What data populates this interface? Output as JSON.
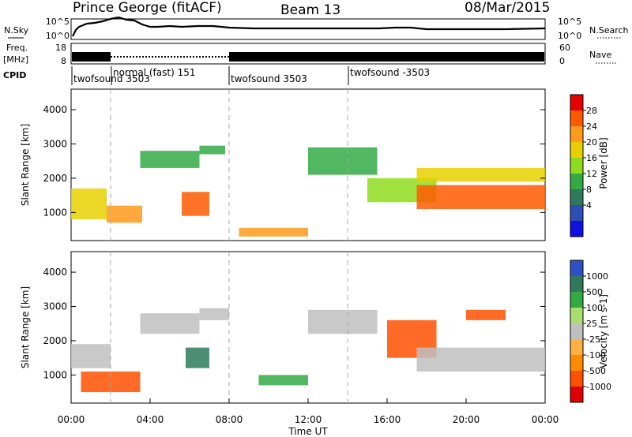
{
  "header": {
    "station": "Prince George (fitACF)",
    "beam": "Beam 13",
    "date": "08/Mar/2015"
  },
  "top_panels": {
    "nsky_label": "N.Sky",
    "nsearch_label": "N.Search",
    "freq_label": "Freq.",
    "freq_unit": "[MHz]",
    "nave_label": "Nave",
    "cpid_label": "CPID",
    "noise_left_ticks": [
      "10^5",
      "10^0"
    ],
    "noise_right_ticks": [
      "10^5",
      "10^0"
    ],
    "freq_left_ticks": [
      "18",
      "8"
    ],
    "nave_right_ticks": [
      "60",
      "0"
    ]
  },
  "cpid_segments": [
    {
      "label": "twofsound 3503",
      "start": "00:00"
    },
    {
      "label": "normal (fast) 151",
      "start": "02:00"
    },
    {
      "label": "twofsound 3503",
      "start": "08:00"
    },
    {
      "label": "twofsound -3503",
      "start": "14:00"
    }
  ],
  "power_colorbar": {
    "label": "Power [dB]",
    "ticks": [
      "28",
      "24",
      "20",
      "16",
      "12",
      "8",
      "4"
    ],
    "colors": [
      "#e60000",
      "#ff5a00",
      "#ff9a1a",
      "#e8d000",
      "#8fdc1f",
      "#33aa44",
      "#2f7a5c",
      "#2d4fb5",
      "#1010e0"
    ]
  },
  "velocity_colorbar": {
    "label": "Velocity [m s-1]",
    "ticks": [
      "1000",
      "500",
      "100",
      "25",
      "-25",
      "-100",
      "-500",
      "-1000"
    ],
    "colors": [
      "#3050c8",
      "#2f7a5c",
      "#33aa44",
      "#a8dd70",
      "#c0c0c0",
      "#ffb040",
      "#ff8a00",
      "#ff5000",
      "#e00000"
    ]
  },
  "chart_data": [
    {
      "type": "heatmap",
      "panel": "power",
      "ylabel": "Slant Range [km]",
      "ylim": [
        180,
        4600
      ],
      "y_ticks": [
        1000,
        2000,
        3000,
        4000
      ],
      "x_ticks": [
        "00:00",
        "04:00",
        "08:00",
        "12:00",
        "16:00",
        "20:00",
        "00:00"
      ],
      "xlim_hours": [
        0,
        24
      ],
      "colorbar": "Power [dB]",
      "bands": [
        {
          "t0": 0.0,
          "t1": 1.8,
          "r0": 800,
          "r1": 1700,
          "value_db": 16
        },
        {
          "t0": 1.8,
          "t1": 3.6,
          "r0": 700,
          "r1": 1200,
          "value_db": 20
        },
        {
          "t0": 3.5,
          "t1": 6.5,
          "r0": 2300,
          "r1": 2800,
          "value_db": 8
        },
        {
          "t0": 6.5,
          "t1": 7.8,
          "r0": 2700,
          "r1": 2950,
          "value_db": 8
        },
        {
          "t0": 5.6,
          "t1": 7.0,
          "r0": 900,
          "r1": 1600,
          "value_db": 24
        },
        {
          "t0": 8.5,
          "t1": 12.0,
          "r0": 300,
          "r1": 550,
          "value_db": 20
        },
        {
          "t0": 12.0,
          "t1": 15.5,
          "r0": 2100,
          "r1": 2900,
          "value_db": 8
        },
        {
          "t0": 15.0,
          "t1": 18.5,
          "r0": 1300,
          "r1": 2000,
          "value_db": 12
        },
        {
          "t0": 17.5,
          "t1": 24.0,
          "r0": 1100,
          "r1": 1800,
          "value_db": 24
        },
        {
          "t0": 17.5,
          "t1": 24.0,
          "r0": 1900,
          "r1": 2300,
          "value_db": 16
        }
      ]
    },
    {
      "type": "heatmap",
      "panel": "velocity",
      "xlabel": "Time UT",
      "ylabel": "Slant Range [km]",
      "ylim": [
        180,
        4600
      ],
      "y_ticks": [
        1000,
        2000,
        3000,
        4000
      ],
      "x_ticks": [
        "00:00",
        "04:00",
        "08:00",
        "12:00",
        "16:00",
        "20:00",
        "00:00"
      ],
      "xlim_hours": [
        0,
        24
      ],
      "colorbar": "Velocity [m s-1]",
      "bands": [
        {
          "t0": 0.0,
          "t1": 2.0,
          "r0": 1200,
          "r1": 1900,
          "value_ms": 0
        },
        {
          "t0": 0.5,
          "t1": 3.5,
          "r0": 500,
          "r1": 1100,
          "value_ms": -300
        },
        {
          "t0": 3.5,
          "t1": 6.5,
          "r0": 2200,
          "r1": 2800,
          "value_ms": 0
        },
        {
          "t0": 6.5,
          "t1": 8.0,
          "r0": 2600,
          "r1": 2950,
          "value_ms": 0
        },
        {
          "t0": 5.8,
          "t1": 7.0,
          "r0": 1200,
          "r1": 1800,
          "value_ms": 300
        },
        {
          "t0": 9.5,
          "t1": 12.0,
          "r0": 700,
          "r1": 1000,
          "value_ms": 120
        },
        {
          "t0": 12.0,
          "t1": 15.5,
          "r0": 2200,
          "r1": 2900,
          "value_ms": 0
        },
        {
          "t0": 16.0,
          "t1": 18.5,
          "r0": 1500,
          "r1": 2600,
          "value_ms": -300
        },
        {
          "t0": 17.5,
          "t1": 24.0,
          "r0": 1100,
          "r1": 1800,
          "value_ms": 0
        },
        {
          "t0": 20.0,
          "t1": 22.0,
          "r0": 2600,
          "r1": 2900,
          "value_ms": -300
        }
      ]
    }
  ]
}
